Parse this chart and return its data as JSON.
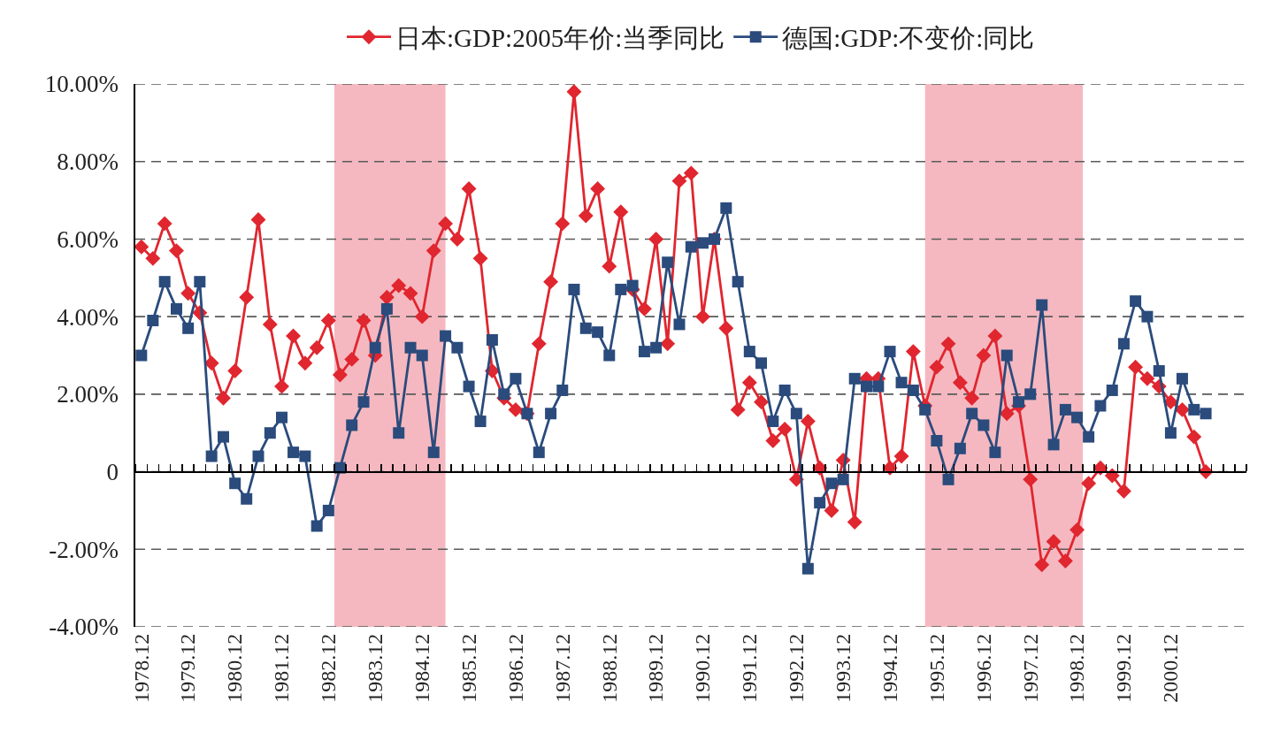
{
  "chart_data": {
    "type": "line",
    "x": [
      "1978-12",
      "1979-03",
      "1979-06",
      "1979-09",
      "1979-12",
      "1980-03",
      "1980-06",
      "1980-09",
      "1980-12",
      "1981-03",
      "1981-06",
      "1981-09",
      "1981-12",
      "1982-03",
      "1982-06",
      "1982-09",
      "1982-12",
      "1983-03",
      "1983-06",
      "1983-09",
      "1983-12",
      "1984-03",
      "1984-06",
      "1984-09",
      "1984-12",
      "1985-03",
      "1985-06",
      "1985-09",
      "1985-12",
      "1986-03",
      "1986-06",
      "1986-09",
      "1986-12",
      "1987-03",
      "1987-06",
      "1987-09",
      "1987-12",
      "1988-03",
      "1988-06",
      "1988-09",
      "1988-12",
      "1989-03",
      "1989-06",
      "1989-09",
      "1989-12",
      "1990-03",
      "1990-06",
      "1990-09",
      "1990-12",
      "1991-03",
      "1991-06",
      "1991-09",
      "1991-12",
      "1992-03",
      "1992-06",
      "1992-09",
      "1992-12",
      "1993-03",
      "1993-06",
      "1993-09",
      "1993-12",
      "1994-03",
      "1994-06",
      "1994-09",
      "1994-12",
      "1995-03",
      "1995-06",
      "1995-09",
      "1995-12",
      "1996-03",
      "1996-06",
      "1996-09",
      "1996-12",
      "1997-03",
      "1997-06",
      "1997-09",
      "1997-12",
      "1998-03",
      "1998-06",
      "1998-09",
      "1998-12",
      "1999-03",
      "1999-06",
      "1999-09",
      "1999-12",
      "2000-03",
      "2000-06",
      "2000-09",
      "2000-12",
      "2001-03",
      "2001-06",
      "2001-09"
    ],
    "series": [
      {
        "name": "日本:GDP:2005年价:当季同比",
        "color": "#e0262f",
        "marker": "diamond",
        "values": [
          5.8,
          5.5,
          6.4,
          5.7,
          4.6,
          4.1,
          2.8,
          1.9,
          2.6,
          4.5,
          6.5,
          3.8,
          2.2,
          3.5,
          2.8,
          3.2,
          3.9,
          2.5,
          2.9,
          3.9,
          3.0,
          4.5,
          4.8,
          4.6,
          4.0,
          5.7,
          6.4,
          6.0,
          7.3,
          5.5,
          2.6,
          1.9,
          1.6,
          1.5,
          3.3,
          4.9,
          6.4,
          9.8,
          6.6,
          7.3,
          5.3,
          6.7,
          4.7,
          4.2,
          6.0,
          3.3,
          7.5,
          7.7,
          4.0,
          6.0,
          3.7,
          1.6,
          2.3,
          1.8,
          0.8,
          1.1,
          -0.2,
          1.3,
          0.1,
          -1.0,
          0.3,
          -1.3,
          2.4,
          2.4,
          0.1,
          0.4,
          3.1,
          1.7,
          2.7,
          3.3,
          2.3,
          1.9,
          3.0,
          3.5,
          1.5,
          1.7,
          -0.2,
          -2.4,
          -1.8,
          -2.3,
          -1.5,
          -0.3,
          0.1,
          -0.1,
          -0.5,
          2.7,
          2.4,
          2.2,
          1.8,
          1.6,
          0.9,
          0.0
        ]
      },
      {
        "name": "德国:GDP:不变价:同比",
        "color": "#2a4b7c",
        "marker": "square",
        "values": [
          3.0,
          3.9,
          4.9,
          4.2,
          3.7,
          4.9,
          0.4,
          0.9,
          -0.3,
          -0.7,
          0.4,
          1.0,
          1.4,
          0.5,
          0.4,
          -1.4,
          -1.0,
          0.1,
          1.2,
          1.8,
          3.2,
          4.2,
          1.0,
          3.2,
          3.0,
          0.5,
          3.5,
          3.2,
          2.2,
          1.3,
          3.4,
          2.0,
          2.4,
          1.5,
          0.5,
          1.5,
          2.1,
          4.7,
          3.7,
          3.6,
          3.0,
          4.7,
          4.8,
          3.1,
          3.2,
          5.4,
          3.8,
          5.8,
          5.9,
          6.0,
          6.8,
          4.9,
          3.1,
          2.8,
          1.3,
          2.1,
          1.5,
          -2.5,
          -0.8,
          -0.3,
          -0.2,
          2.4,
          2.2,
          2.2,
          3.1,
          2.3,
          2.1,
          1.6,
          0.8,
          -0.2,
          0.6,
          1.5,
          1.2,
          0.5,
          3.0,
          1.8,
          2.0,
          4.3,
          0.7,
          1.6,
          1.4,
          0.9,
          1.7,
          2.1,
          3.3,
          4.4,
          4.0,
          2.6,
          1.0,
          2.4,
          1.6,
          1.5
        ]
      }
    ],
    "xlim": [
      "1978-10-15",
      "2002-07-15"
    ],
    "xticks": [
      {
        "value": "1978-10-15",
        "label": null
      },
      {
        "value": "1978-12",
        "label": "1978.12"
      },
      {
        "value": "1979-01-15",
        "label": null
      },
      {
        "value": "1979-04-15",
        "label": null
      },
      {
        "value": "1979-07-15",
        "label": null
      },
      {
        "value": "1979-10-15",
        "label": null
      },
      {
        "value": "1979-12",
        "label": "1979.12"
      },
      {
        "value": "1980-01-15",
        "label": null
      },
      {
        "value": "1980-04-15",
        "label": null
      },
      {
        "value": "1980-07-15",
        "label": null
      },
      {
        "value": "1980-10-15",
        "label": null
      },
      {
        "value": "1980-12",
        "label": "1980.12"
      },
      {
        "value": "1981-01-15",
        "label": null
      },
      {
        "value": "1981-04-15",
        "label": null
      },
      {
        "value": "1981-07-15",
        "label": null
      },
      {
        "value": "1981-10-15",
        "label": null
      },
      {
        "value": "1981-12",
        "label": "1981.12"
      },
      {
        "value": "1982-01-15",
        "label": null
      },
      {
        "value": "1982-04-15",
        "label": null
      },
      {
        "value": "1982-07-15",
        "label": null
      },
      {
        "value": "1982-10-15",
        "label": null
      },
      {
        "value": "1982-12",
        "label": "1982.12"
      },
      {
        "value": "1983-01-15",
        "label": null
      },
      {
        "value": "1983-04-15",
        "label": null
      },
      {
        "value": "1983-07-15",
        "label": null
      },
      {
        "value": "1983-10-15",
        "label": null
      },
      {
        "value": "1983-12",
        "label": "1983.12"
      },
      {
        "value": "1984-01-15",
        "label": null
      },
      {
        "value": "1984-04-15",
        "label": null
      },
      {
        "value": "1984-07-15",
        "label": null
      },
      {
        "value": "1984-10-15",
        "label": null
      },
      {
        "value": "1984-12",
        "label": "1984.12"
      },
      {
        "value": "1985-01-15",
        "label": null
      },
      {
        "value": "1985-04-15",
        "label": null
      },
      {
        "value": "1985-07-15",
        "label": null
      },
      {
        "value": "1985-10-15",
        "label": null
      },
      {
        "value": "1985-12",
        "label": "1985.12"
      },
      {
        "value": "1986-01-15",
        "label": null
      },
      {
        "value": "1986-04-15",
        "label": null
      },
      {
        "value": "1986-07-15",
        "label": null
      },
      {
        "value": "1986-10-15",
        "label": null
      },
      {
        "value": "1986-12",
        "label": "1986.12"
      },
      {
        "value": "1987-01-15",
        "label": null
      },
      {
        "value": "1987-04-15",
        "label": null
      },
      {
        "value": "1987-07-15",
        "label": null
      },
      {
        "value": "1987-10-15",
        "label": null
      },
      {
        "value": "1987-12",
        "label": "1987.12"
      },
      {
        "value": "1988-01-15",
        "label": null
      },
      {
        "value": "1988-04-15",
        "label": null
      },
      {
        "value": "1988-07-15",
        "label": null
      },
      {
        "value": "1988-10-15",
        "label": null
      },
      {
        "value": "1988-12",
        "label": "1988.12"
      },
      {
        "value": "1989-01-15",
        "label": null
      },
      {
        "value": "1989-04-15",
        "label": null
      },
      {
        "value": "1989-07-15",
        "label": null
      },
      {
        "value": "1989-10-15",
        "label": null
      },
      {
        "value": "1989-12",
        "label": "1989.12"
      },
      {
        "value": "1990-01-15",
        "label": null
      },
      {
        "value": "1990-04-15",
        "label": null
      },
      {
        "value": "1990-07-15",
        "label": null
      },
      {
        "value": "1990-10-15",
        "label": null
      },
      {
        "value": "1990-12",
        "label": "1990.12"
      },
      {
        "value": "1991-01-15",
        "label": null
      },
      {
        "value": "1991-04-15",
        "label": null
      },
      {
        "value": "1991-07-15",
        "label": null
      },
      {
        "value": "1991-10-15",
        "label": null
      },
      {
        "value": "1991-12",
        "label": "1991.12"
      },
      {
        "value": "1992-01-15",
        "label": null
      },
      {
        "value": "1992-04-15",
        "label": null
      },
      {
        "value": "1992-07-15",
        "label": null
      },
      {
        "value": "1992-10-15",
        "label": null
      },
      {
        "value": "1992-12",
        "label": "1992.12"
      },
      {
        "value": "1993-01-15",
        "label": null
      },
      {
        "value": "1993-04-15",
        "label": null
      },
      {
        "value": "1993-07-15",
        "label": null
      },
      {
        "value": "1993-10-15",
        "label": null
      },
      {
        "value": "1993-12",
        "label": "1993.12"
      },
      {
        "value": "1994-01-15",
        "label": null
      },
      {
        "value": "1994-04-15",
        "label": null
      },
      {
        "value": "1994-07-15",
        "label": null
      },
      {
        "value": "1994-10-15",
        "label": null
      },
      {
        "value": "1994-12",
        "label": "1994.12"
      },
      {
        "value": "1995-01-15",
        "label": null
      },
      {
        "value": "1995-04-15",
        "label": null
      },
      {
        "value": "1995-07-15",
        "label": null
      },
      {
        "value": "1995-10-15",
        "label": null
      },
      {
        "value": "1995-12",
        "label": "1995.12"
      },
      {
        "value": "1996-01-15",
        "label": null
      },
      {
        "value": "1996-04-15",
        "label": null
      },
      {
        "value": "1996-07-15",
        "label": null
      },
      {
        "value": "1996-10-15",
        "label": null
      },
      {
        "value": "1996-12",
        "label": "1996.12"
      },
      {
        "value": "1997-01-15",
        "label": null
      },
      {
        "value": "1997-04-15",
        "label": null
      },
      {
        "value": "1997-07-15",
        "label": null
      },
      {
        "value": "1997-10-15",
        "label": null
      },
      {
        "value": "1997-12",
        "label": "1997.12"
      },
      {
        "value": "1998-01-15",
        "label": null
      },
      {
        "value": "1998-04-15",
        "label": null
      },
      {
        "value": "1998-07-15",
        "label": null
      },
      {
        "value": "1998-10-15",
        "label": null
      },
      {
        "value": "1998-12",
        "label": "1998.12"
      },
      {
        "value": "1999-01-15",
        "label": null
      },
      {
        "value": "1999-04-15",
        "label": null
      },
      {
        "value": "1999-07-15",
        "label": null
      },
      {
        "value": "1999-10-15",
        "label": null
      },
      {
        "value": "1999-12",
        "label": "1999.12"
      },
      {
        "value": "2000-01-15",
        "label": null
      },
      {
        "value": "2000-04-15",
        "label": null
      },
      {
        "value": "2000-07-15",
        "label": null
      },
      {
        "value": "2000-10-15",
        "label": null
      },
      {
        "value": "2000-12",
        "label": "2000.12"
      },
      {
        "value": "2001-01-15",
        "label": null
      },
      {
        "value": "2001-04-15",
        "label": null
      },
      {
        "value": "2001-07-15",
        "label": null
      },
      {
        "value": "2001-10-15",
        "label": null
      },
      {
        "value": "2002-01-15",
        "label": null
      },
      {
        "value": "2002-04-15",
        "label": null
      },
      {
        "value": "2002-07-15",
        "label": null
      }
    ],
    "ylim": [
      -4,
      10
    ],
    "yticks": [
      {
        "value": -4,
        "label": "-4.00%"
      },
      {
        "value": -2,
        "label": "-2.00%"
      },
      0,
      {
        "value": 2,
        "label": "2.00%"
      },
      {
        "value": 4,
        "label": "4.00%"
      },
      {
        "value": 6,
        "label": "6.00%"
      },
      {
        "value": 8,
        "label": "8.00%"
      },
      {
        "value": 10,
        "label": "10.00%"
      }
    ],
    "bands": [
      {
        "axis": "x",
        "from": "1983-01-15",
        "to": "1985-06",
        "color": "#f5b8c0"
      },
      {
        "axis": "x",
        "from": "1995-09",
        "to": "1999-01-15",
        "color": "#f5b8c0"
      }
    ],
    "grid": "y",
    "legend": "top",
    "line_style": "solid"
  }
}
